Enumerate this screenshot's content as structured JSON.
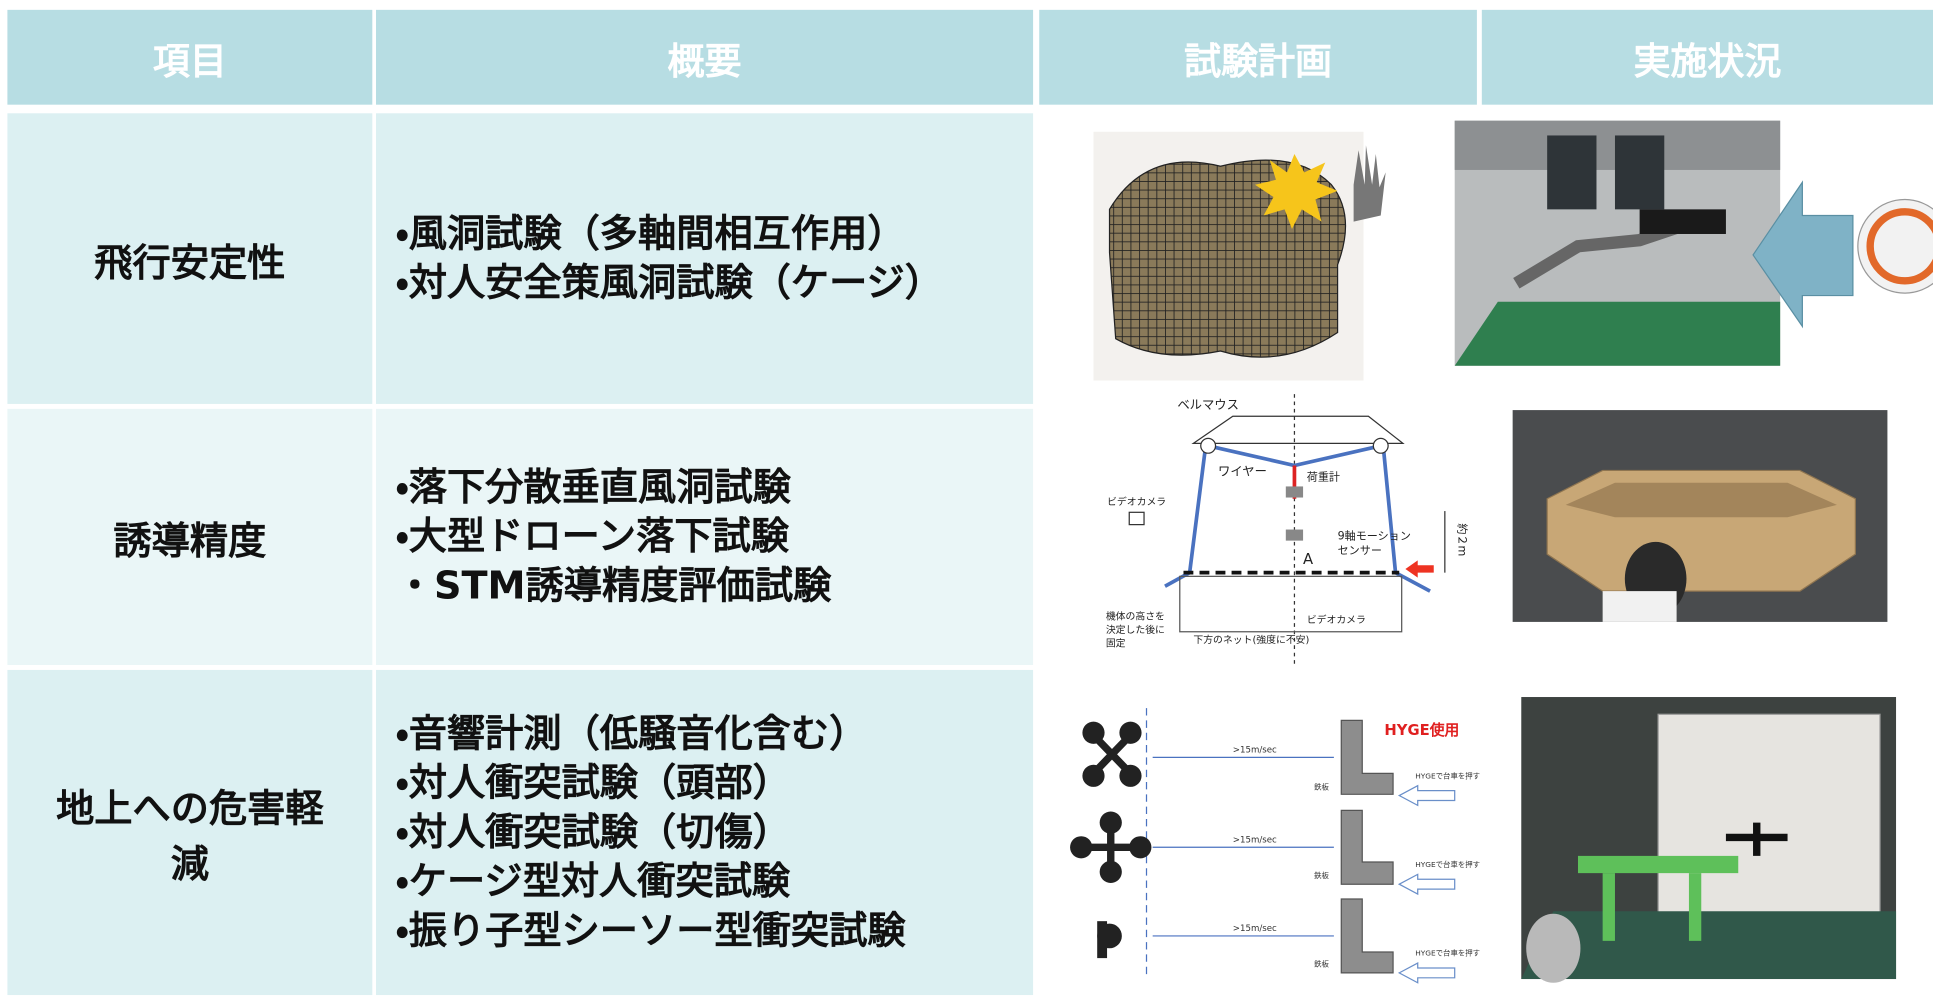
{
  "table": {
    "headers": [
      "項目",
      "概要",
      "試験計画",
      "実施状況"
    ],
    "rows": [
      {
        "item": "飛行安定性",
        "overview": [
          "・風洞試験（多軸間相互作用）",
          "・対人安全策風洞試験（ケージ）"
        ]
      },
      {
        "item": "誘導精度",
        "overview": [
          "・落下分散垂直風洞試験",
          "・大型ドローン落下試験",
          "・STM誘導精度評価試験"
        ]
      },
      {
        "item": "地上への危害軽減",
        "overview": [
          "・音響計測（低騒音化含む）",
          "・対人衝突試験（頭部）",
          "・対人衝突試験（切傷）",
          "・ケージ型対人衝突試験",
          "・振り子型シーソー型衝突試験"
        ]
      }
    ]
  },
  "diagram_labels": {
    "guidance": [
      "ベルマウス",
      "ワイヤー",
      "荷重計",
      "ビデオカメラ",
      "9軸モーション",
      "センサー",
      "約２m",
      "A",
      "機体の高さを",
      "決定した後に",
      "固定",
      "ビデオカメラ",
      "下方のネット(強度に不安)"
    ],
    "ground": [
      "HYGE使用",
      ">15m/sec",
      ">15m/sec",
      ">15m/sec",
      "HYGEで台車を押す",
      "HYGEで台車を押す",
      "HYGEで台車を押す",
      "鉄板",
      "鉄板",
      "鉄板"
    ]
  }
}
